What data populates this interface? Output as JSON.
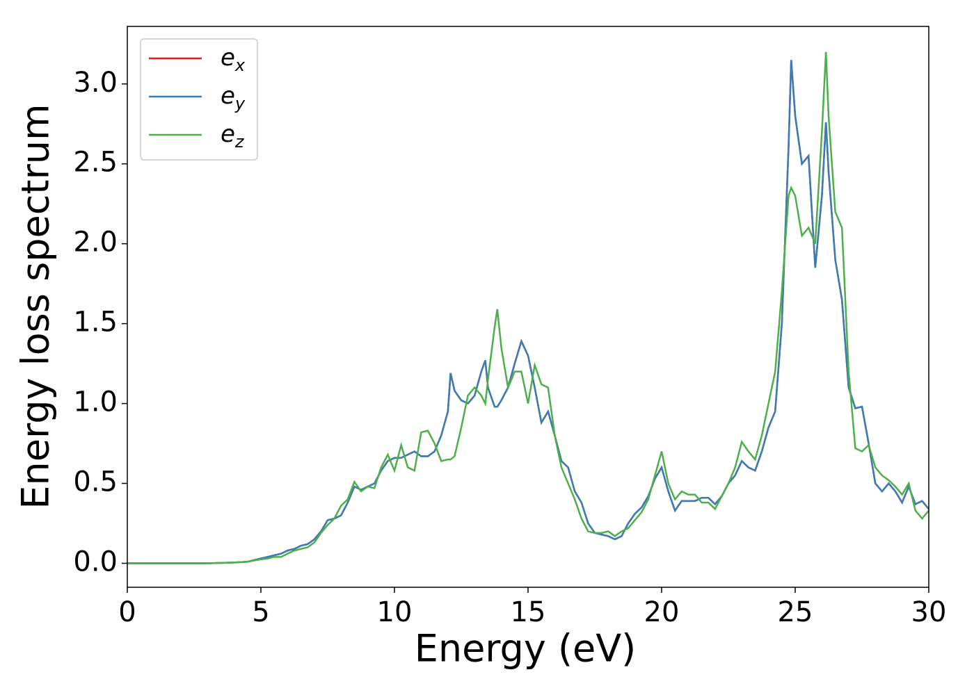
{
  "chart_data": {
    "type": "line",
    "xlabel": "Energy (eV)",
    "ylabel": "Energy loss spectrum",
    "x": [
      0,
      1,
      2,
      3,
      4,
      4.5,
      5,
      5.25,
      5.5,
      5.75,
      6,
      6.25,
      6.5,
      6.75,
      7,
      7.25,
      7.5,
      7.75,
      8,
      8.25,
      8.5,
      8.75,
      9,
      9.25,
      9.5,
      9.75,
      10,
      10.25,
      10.5,
      10.75,
      11,
      11.25,
      11.5,
      11.75,
      12,
      12.1,
      12.25,
      12.5,
      12.75,
      13,
      13.25,
      13.4,
      13.5,
      13.75,
      13.85,
      14,
      14.25,
      14.5,
      14.75,
      15,
      15.25,
      15.5,
      15.75,
      16,
      16.25,
      16.5,
      16.75,
      17,
      17.25,
      17.5,
      17.75,
      18,
      18.25,
      18.5,
      18.75,
      19,
      19.25,
      19.5,
      19.75,
      20,
      20.25,
      20.5,
      20.75,
      21,
      21.25,
      21.5,
      21.75,
      22,
      22.25,
      22.5,
      22.75,
      23,
      23.25,
      23.5,
      23.75,
      24,
      24.25,
      24.5,
      24.75,
      24.85,
      25,
      25.25,
      25.5,
      25.75,
      26,
      26.15,
      26.25,
      26.5,
      26.75,
      27,
      27.25,
      27.5,
      27.75,
      28,
      28.25,
      28.5,
      28.75,
      29,
      29.25,
      29.5,
      29.75,
      30
    ],
    "series": [
      {
        "name": "ex",
        "color": "#e41a1c",
        "values": [
          0,
          0,
          0,
          0,
          0.005,
          0.01,
          0.03,
          0.04,
          0.05,
          0.06,
          0.08,
          0.09,
          0.11,
          0.12,
          0.15,
          0.2,
          0.27,
          0.28,
          0.3,
          0.38,
          0.48,
          0.46,
          0.48,
          0.5,
          0.58,
          0.64,
          0.66,
          0.66,
          0.68,
          0.7,
          0.67,
          0.67,
          0.7,
          0.8,
          0.95,
          1.19,
          1.08,
          1.02,
          1.0,
          1.05,
          1.2,
          1.27,
          1.1,
          0.98,
          0.98,
          1.02,
          1.1,
          1.25,
          1.39,
          1.3,
          1.1,
          0.88,
          0.95,
          0.8,
          0.64,
          0.6,
          0.45,
          0.38,
          0.25,
          0.19,
          0.18,
          0.17,
          0.15,
          0.17,
          0.25,
          0.31,
          0.35,
          0.42,
          0.53,
          0.6,
          0.45,
          0.33,
          0.39,
          0.39,
          0.39,
          0.41,
          0.41,
          0.37,
          0.42,
          0.5,
          0.55,
          0.64,
          0.6,
          0.58,
          0.7,
          0.85,
          0.95,
          1.5,
          2.6,
          3.15,
          2.8,
          2.5,
          2.55,
          1.85,
          2.3,
          2.76,
          2.45,
          1.9,
          1.65,
          1.1,
          0.97,
          0.98,
          0.75,
          0.5,
          0.45,
          0.5,
          0.45,
          0.38,
          0.48,
          0.37,
          0.39,
          0.34
        ]
      },
      {
        "name": "ey",
        "color": "#377eb8",
        "values": [
          0,
          0,
          0,
          0,
          0.005,
          0.01,
          0.03,
          0.04,
          0.05,
          0.06,
          0.08,
          0.09,
          0.11,
          0.12,
          0.15,
          0.2,
          0.27,
          0.28,
          0.3,
          0.38,
          0.48,
          0.46,
          0.48,
          0.5,
          0.58,
          0.64,
          0.66,
          0.66,
          0.68,
          0.7,
          0.67,
          0.67,
          0.7,
          0.8,
          0.95,
          1.19,
          1.08,
          1.02,
          1.0,
          1.05,
          1.2,
          1.27,
          1.1,
          0.98,
          0.98,
          1.02,
          1.1,
          1.25,
          1.39,
          1.3,
          1.1,
          0.88,
          0.95,
          0.8,
          0.64,
          0.6,
          0.45,
          0.38,
          0.25,
          0.19,
          0.18,
          0.17,
          0.15,
          0.17,
          0.25,
          0.31,
          0.35,
          0.42,
          0.53,
          0.6,
          0.45,
          0.33,
          0.39,
          0.39,
          0.39,
          0.41,
          0.41,
          0.37,
          0.42,
          0.5,
          0.55,
          0.64,
          0.6,
          0.58,
          0.7,
          0.85,
          0.95,
          1.5,
          2.6,
          3.15,
          2.8,
          2.5,
          2.55,
          1.85,
          2.3,
          2.76,
          2.45,
          1.9,
          1.65,
          1.1,
          0.97,
          0.98,
          0.75,
          0.5,
          0.45,
          0.5,
          0.45,
          0.38,
          0.48,
          0.37,
          0.39,
          0.34
        ]
      },
      {
        "name": "ez",
        "color": "#4daf4a",
        "values": [
          0,
          0,
          0,
          0,
          0.005,
          0.01,
          0.025,
          0.03,
          0.04,
          0.04,
          0.06,
          0.08,
          0.09,
          0.1,
          0.13,
          0.19,
          0.24,
          0.28,
          0.36,
          0.4,
          0.51,
          0.45,
          0.48,
          0.47,
          0.6,
          0.68,
          0.58,
          0.74,
          0.6,
          0.58,
          0.82,
          0.83,
          0.75,
          0.64,
          0.65,
          0.65,
          0.67,
          0.85,
          1.05,
          1.1,
          1.05,
          1.0,
          1.15,
          1.48,
          1.59,
          1.35,
          1.1,
          1.2,
          1.2,
          1.0,
          1.24,
          1.12,
          1.1,
          0.8,
          0.6,
          0.5,
          0.4,
          0.28,
          0.2,
          0.19,
          0.19,
          0.2,
          0.17,
          0.2,
          0.22,
          0.27,
          0.32,
          0.4,
          0.55,
          0.7,
          0.5,
          0.4,
          0.45,
          0.43,
          0.43,
          0.38,
          0.38,
          0.34,
          0.42,
          0.5,
          0.6,
          0.76,
          0.7,
          0.65,
          0.8,
          1.0,
          1.2,
          1.7,
          2.3,
          2.35,
          2.3,
          2.05,
          2.1,
          2.0,
          2.7,
          3.2,
          2.8,
          2.2,
          2.1,
          1.2,
          0.72,
          0.7,
          0.74,
          0.6,
          0.55,
          0.52,
          0.48,
          0.43,
          0.5,
          0.33,
          0.28,
          0.33
        ]
      }
    ],
    "xlim": [
      0,
      30
    ],
    "xticks": [
      0,
      5,
      10,
      15,
      20,
      25,
      30
    ],
    "ylim": [
      -0.15,
      3.36
    ],
    "yticks": [
      {
        "value": 0,
        "label": "0.0"
      },
      0.5,
      {
        "value": 1,
        "label": "1.0"
      },
      1.5,
      {
        "value": 2,
        "label": "2.0"
      },
      2.5,
      {
        "value": 3,
        "label": "3.0"
      }
    ],
    "grid": false,
    "legend": "upper left"
  }
}
